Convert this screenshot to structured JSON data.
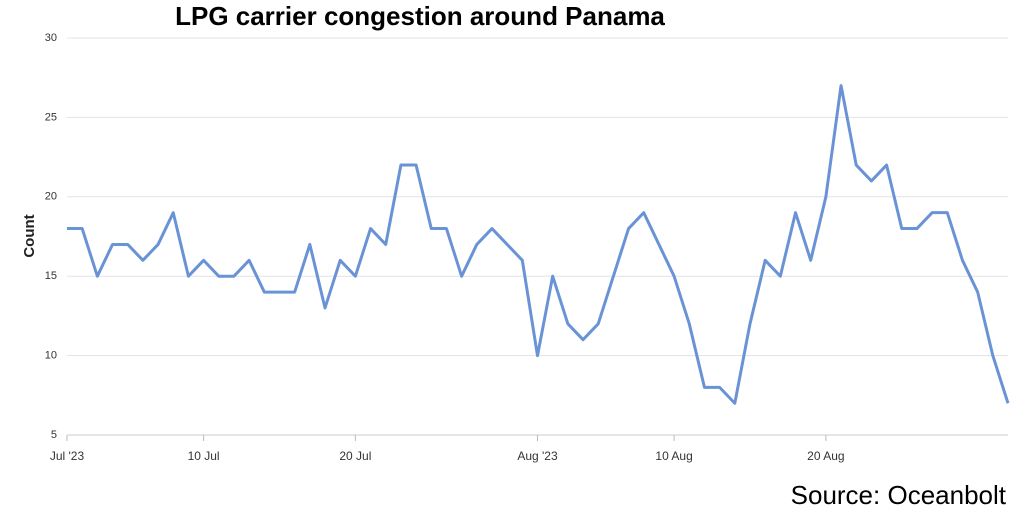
{
  "chart_data": {
    "type": "line",
    "title": "LPG carrier congestion around Panama",
    "y_label": "Count",
    "source": "Source: Oceanbolt",
    "x": [
      "2023-07-01",
      "2023-07-02",
      "2023-07-03",
      "2023-07-04",
      "2023-07-05",
      "2023-07-06",
      "2023-07-07",
      "2023-07-08",
      "2023-07-09",
      "2023-07-10",
      "2023-07-11",
      "2023-07-12",
      "2023-07-13",
      "2023-07-14",
      "2023-07-15",
      "2023-07-16",
      "2023-07-17",
      "2023-07-18",
      "2023-07-19",
      "2023-07-20",
      "2023-07-21",
      "2023-07-22",
      "2023-07-23",
      "2023-07-24",
      "2023-07-25",
      "2023-07-26",
      "2023-07-27",
      "2023-07-28",
      "2023-07-29",
      "2023-07-30",
      "2023-07-31",
      "2023-08-01",
      "2023-08-02",
      "2023-08-03",
      "2023-08-04",
      "2023-08-05",
      "2023-08-06",
      "2023-08-07",
      "2023-08-08",
      "2023-08-09",
      "2023-08-10",
      "2023-08-11",
      "2023-08-12",
      "2023-08-13",
      "2023-08-14",
      "2023-08-15",
      "2023-08-16",
      "2023-08-17",
      "2023-08-18",
      "2023-08-19",
      "2023-08-20",
      "2023-08-21",
      "2023-08-22",
      "2023-08-23",
      "2023-08-24",
      "2023-08-25",
      "2023-08-26",
      "2023-08-27",
      "2023-08-28",
      "2023-08-29",
      "2023-08-30",
      "2023-08-31",
      "2023-09-01"
    ],
    "series": [
      {
        "name": "Count",
        "color": "#6a93d6",
        "values": [
          18,
          18,
          15,
          17,
          17,
          16,
          17,
          19,
          15,
          16,
          15,
          15,
          16,
          14,
          14,
          14,
          17,
          13,
          16,
          15,
          18,
          17,
          22,
          22,
          18,
          18,
          15,
          17,
          18,
          17,
          16,
          10,
          15,
          12,
          11,
          12,
          15,
          18,
          19,
          17,
          15,
          12,
          8,
          8,
          7,
          12,
          16,
          15,
          19,
          16,
          20,
          27,
          22,
          21,
          22,
          18,
          18,
          19,
          19,
          16,
          14,
          10,
          7
        ]
      }
    ],
    "xlim": [
      "2023-07-01",
      "2023-09-01"
    ],
    "xticks": [
      {
        "value": "2023-07-01",
        "label": "Jul '23"
      },
      {
        "value": "2023-07-10",
        "label": "10 Jul"
      },
      {
        "value": "2023-07-20",
        "label": "20 Jul"
      },
      {
        "value": "2023-08-01",
        "label": "Aug '23"
      },
      {
        "value": "2023-08-10",
        "label": "10 Aug"
      },
      {
        "value": "2023-08-20",
        "label": "20 Aug"
      }
    ],
    "ylim": [
      5,
      30
    ],
    "yticks": [
      5,
      10,
      15,
      20,
      25,
      30
    ],
    "grid": true
  }
}
